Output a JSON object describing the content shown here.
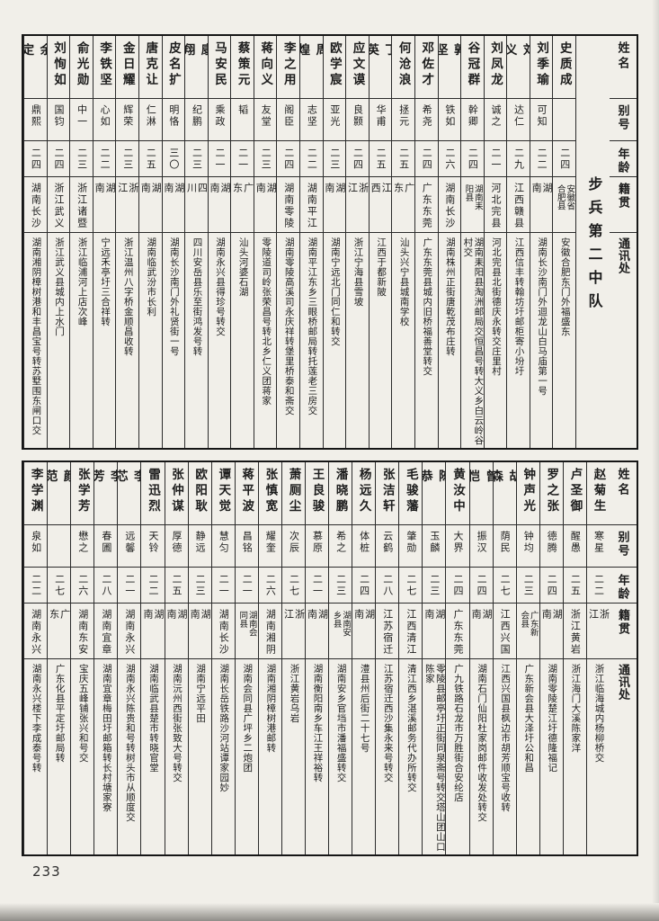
{
  "page_number": "233",
  "colors": {
    "paper": "#f1efe9",
    "ink": "#1c1c1c"
  },
  "section_title": "步兵第二中队",
  "column_headers": {
    "name": "姓名",
    "alias": "别号",
    "age": "年龄",
    "native": "籍贯",
    "address": "通讯处"
  },
  "top_table": {
    "entries": [
      {
        "name": "史质成",
        "alias": "",
        "age": "二四",
        "native": "安徽省合肥县",
        "address": "安徽合肥东门外福盛东"
      },
      {
        "name": "刘季瑜",
        "alias": "可知",
        "age": "二二",
        "native": "湖南",
        "address": "湖南长沙南门外迴龙山白马庙第一号"
      },
      {
        "name": "刘义",
        "alias": "达仁",
        "age": "二九",
        "native": "江西赣县",
        "address": "江西信丰转翰坊圩邮柜寄小坋圩"
      },
      {
        "name": "刘凤龙",
        "alias": "诚之",
        "age": "二一",
        "native": "河北完县",
        "address": "河北完县北街德庆永转交庄里村"
      },
      {
        "name": "谷冠群",
        "alias": "幹卿",
        "age": "二四",
        "native": "湖南耒阳县",
        "address": "湖南耒阳县淘洲邮局交恒昌号转大义乡白云岭谷村交"
      },
      {
        "name": "郭坚",
        "alias": "铁如",
        "age": "二六",
        "native": "湖南长沙",
        "address": "湖南株州正街唐乾茂布庄转"
      },
      {
        "name": "邓佐才",
        "alias": "希尧",
        "age": "二四",
        "native": "广东东莞",
        "address": "广东东莞县城内旧桥福善堂转交"
      },
      {
        "name": "何沧浪",
        "alias": "拯元",
        "age": "二五",
        "native": "广东",
        "address": "汕头兴宁县城南学校"
      },
      {
        "name": "丁英",
        "alias": "华甫",
        "age": "二五",
        "native": "江西",
        "address": "江西于都新陂"
      },
      {
        "name": "应文谟",
        "alias": "良颢",
        "age": "二四",
        "native": "浙江",
        "address": "浙江宁海县雪坡"
      },
      {
        "name": "欧学宸",
        "alias": "亚光",
        "age": "二三",
        "native": "湖南",
        "address": "湖南宁远北门同仁和转交"
      },
      {
        "name": "周煌",
        "alias": "志坚",
        "age": "二二",
        "native": "湖南平江",
        "address": "湖南平江东乡三眼桥邮局转托莲老三房交"
      },
      {
        "name": "李之用",
        "alias": "阁臣",
        "age": "二四",
        "native": "湖南零陵",
        "address": "湖南零陵高溪司永庆祥转堡里桥泰和斋交"
      },
      {
        "name": "蒋向义",
        "alias": "友堂",
        "age": "二三",
        "native": "湖南",
        "address": "零陵道司岭张荣昌号转北乡仁义团蒋家"
      },
      {
        "name": "蔡策元",
        "alias": "韬",
        "age": "二一",
        "native": "广东",
        "address": "汕头河婆石湖"
      },
      {
        "name": "马安民",
        "alias": "乘政",
        "age": "二一",
        "native": "湖南",
        "address": "湖南永兴县得珍号转交"
      },
      {
        "name": "康翔",
        "alias": "纪鹏",
        "age": "二三",
        "native": "四川",
        "address": "四川安岳县乐至街鸿发号转"
      },
      {
        "name": "皮名扩",
        "alias": "明恪",
        "age": "三〇",
        "native": "湖南",
        "address": "湖南长沙南门外礼贤街一号"
      },
      {
        "name": "唐克让",
        "alias": "仁淋",
        "age": "二五",
        "native": "湖南",
        "address": "湖南临武汾市长利"
      },
      {
        "name": "金日耀",
        "alias": "辉荣",
        "age": "二三",
        "native": "浙江",
        "address": "浙江温州八字桥金顺昌收转"
      },
      {
        "name": "李铁坚",
        "alias": "心如",
        "age": "二二",
        "native": "湖南",
        "address": "宁远禾亭圩三合祥转"
      },
      {
        "name": "俞光勋",
        "alias": "中一",
        "age": "二三",
        "native": "浙江诸暨",
        "address": "浙江临浦河上店次峰"
      },
      {
        "name": "刘恂如",
        "alias": "国钧",
        "age": "二四",
        "native": "浙江武义",
        "address": "浙江武义县城内上水门"
      },
      {
        "name": "余定",
        "alias": "鼎熙",
        "age": "二四",
        "native": "湖南长沙",
        "address": "湖南湘阴樟树港和丰昌宝号转苏墅围东闸口交"
      }
    ]
  },
  "bottom_table": {
    "entries": [
      {
        "name": "赵菊生",
        "alias": "寒星",
        "age": "二二",
        "native": "浙江",
        "address": "浙江临海城内杨柳桥交"
      },
      {
        "name": "卢圣御",
        "alias": "醒愚",
        "age": "二五",
        "native": "浙江黄岩",
        "address": "浙江海门大溪陈家洋"
      },
      {
        "name": "罗之张",
        "alias": "德腾",
        "age": "二四",
        "native": "湖南",
        "address": "湖南零陵楚江圩德隆福记"
      },
      {
        "name": "钟声光",
        "alias": "钟均",
        "age": "二三",
        "native": "广东新会县",
        "address": "广东新会县大泽圩公和昌"
      },
      {
        "name": "胡森",
        "alias": "荫民",
        "age": "二七",
        "native": "江西兴国",
        "address": "江西兴国县枫边市胡芳顺宝号收转"
      },
      {
        "name": "曾恺",
        "alias": "振汉",
        "age": "二四",
        "native": "湖南",
        "address": "湖南石门仙阳杜家岗邮件收发处转交"
      },
      {
        "name": "黄汝中",
        "alias": "大界",
        "age": "二四",
        "native": "广东东莞",
        "address": "广九铁路石龙市万胜街合安纶店"
      },
      {
        "name": "陈恭",
        "alias": "玉麟",
        "age": "二三",
        "native": "湖南",
        "address": "零陵县邮亭圩正街同泉斋号转交塔山团山口陈家"
      },
      {
        "name": "毛骏藩",
        "alias": "肇勋",
        "age": "二七",
        "native": "江西清江",
        "address": "清江西乡湛溪邮务代办所转交"
      },
      {
        "name": "张洁轩",
        "alias": "云鹤",
        "age": "二八",
        "native": "江苏宿迁",
        "address": "江苏宿迁西沙集永来号转交"
      },
      {
        "name": "杨远久",
        "alias": "体桩",
        "age": "二四",
        "native": "湖南",
        "address": "澧县州后街二十七号"
      },
      {
        "name": "潘晓鹏",
        "alias": "希之",
        "age": "二三",
        "native": "湖南安乡县",
        "address": "湖南安乡官垱市潘福盛转交"
      },
      {
        "name": "王良骏",
        "alias": "慕原",
        "age": "二一",
        "native": "湖南",
        "address": "湖南衡阳南乡车江王祥裕转"
      },
      {
        "name": "萧厕尘",
        "alias": "次辰",
        "age": "二七",
        "native": "浙江",
        "address": "浙江黄岩乌岩"
      },
      {
        "name": "张慎宽",
        "alias": "耀奎",
        "age": "二六",
        "native": "湖南湘阴",
        "address": "湖南湘阴樟树港邮转"
      },
      {
        "name": "蒋平波",
        "alias": "昌铭",
        "age": "二一",
        "native": "湖南会同县",
        "address": "湖南会同县广坪乡二炮团"
      },
      {
        "name": "谭天觉",
        "alias": "慧匀",
        "age": "二一",
        "native": "湖南长沙",
        "address": "湖南长岳铁路沙河站谭家园妙"
      },
      {
        "name": "欧阳耿",
        "alias": "静远",
        "age": "二三",
        "native": "湖南",
        "address": "湖南宁远平田"
      },
      {
        "name": "张仲谋",
        "alias": "厚德",
        "age": "二五",
        "native": "湖南",
        "address": "湖南沅州西街张致大号转交"
      },
      {
        "name": "雷迅烈",
        "alias": "天铃",
        "age": "二二",
        "native": "湖南",
        "address": "湖南临武县楚市转晓官堂"
      },
      {
        "name": "李芯",
        "alias": "远馨",
        "age": "二一",
        "native": "湖南永兴",
        "address": "湖南永兴陈贵和号转树头市从顺度交"
      },
      {
        "name": "李芳",
        "alias": "春圃",
        "age": "二八",
        "native": "湖南宜章",
        "address": "湖南宜章梅田圩邮箱转长村塘家寮"
      },
      {
        "name": "张学芳",
        "alias": "懋之",
        "age": "二六",
        "native": "湖南东安",
        "address": "宝庆五峰铺张兴和号交"
      },
      {
        "name": "颜范",
        "alias": "",
        "age": "二七",
        "native": "广东",
        "address": "广东化县平定圩邮局转"
      },
      {
        "name": "李学渊",
        "alias": "泉如",
        "age": "二二",
        "native": "湖南永兴",
        "address": "湖南永兴楼下李成泰号转"
      }
    ]
  }
}
